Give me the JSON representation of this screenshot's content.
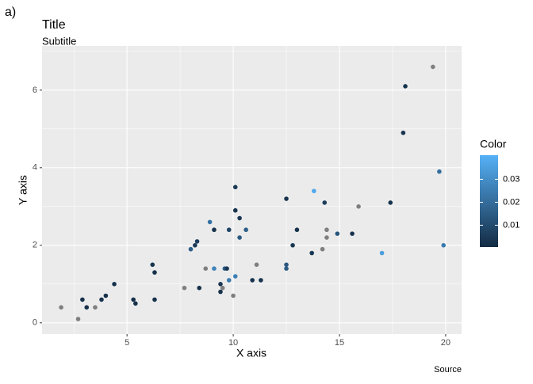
{
  "tag": "a)",
  "chart_data": {
    "type": "scatter",
    "title": "Title",
    "subtitle": "Subtitle",
    "caption": "Source",
    "x_label": "X axis",
    "y_label": "Y axis",
    "color_label": "Color",
    "x": [
      1.9,
      2.7,
      2.9,
      3.1,
      3.5,
      3.8,
      4.0,
      4.4,
      5.3,
      5.4,
      6.2,
      6.3,
      6.3,
      7.7,
      8.0,
      8.2,
      8.3,
      8.4,
      8.7,
      8.9,
      9.1,
      9.1,
      9.4,
      9.4,
      9.5,
      9.6,
      9.7,
      9.8,
      9.8,
      10.0,
      10.1,
      10.1,
      10.1,
      10.3,
      10.3,
      10.6,
      10.9,
      11.1,
      11.3,
      12.5,
      12.5,
      12.5,
      12.8,
      13.0,
      13.7,
      13.8,
      14.2,
      14.3,
      14.4,
      14.4,
      14.9,
      15.6,
      15.9,
      17.4,
      17.0,
      18.0,
      18.1,
      19.4,
      19.7,
      19.9
    ],
    "y": [
      0.4,
      0.1,
      0.6,
      0.4,
      0.4,
      0.6,
      0.7,
      1.0,
      0.6,
      0.5,
      1.5,
      1.3,
      0.6,
      0.9,
      1.9,
      2.0,
      2.1,
      0.9,
      1.4,
      2.6,
      2.4,
      1.4,
      1.0,
      0.8,
      0.9,
      1.4,
      1.4,
      2.4,
      1.1,
      0.7,
      3.5,
      2.9,
      1.2,
      2.7,
      2.2,
      2.4,
      1.1,
      1.5,
      1.1,
      3.2,
      1.5,
      1.4,
      2.0,
      2.4,
      1.8,
      3.4,
      1.9,
      3.1,
      2.4,
      2.2,
      2.3,
      2.3,
      3.0,
      3.1,
      1.8,
      4.9,
      6.1,
      6.6,
      3.9,
      2.0
    ],
    "color": [
      null,
      null,
      0.002,
      0.002,
      null,
      0.003,
      0.002,
      0.003,
      0.002,
      0.002,
      0.003,
      0.002,
      0.002,
      null,
      0.016,
      0.005,
      0.006,
      0.002,
      null,
      0.022,
      0.003,
      0.027,
      0.004,
      0.002,
      null,
      0.016,
      0.004,
      0.008,
      0.025,
      null,
      0.005,
      0.003,
      0.026,
      0.004,
      0.014,
      0.016,
      0.003,
      null,
      0.003,
      0.003,
      0.014,
      0.015,
      0.004,
      0.003,
      0.004,
      0.038,
      null,
      0.006,
      null,
      null,
      0.013,
      0.003,
      null,
      0.003,
      0.035,
      0.003,
      0.003,
      null,
      0.021,
      0.024
    ],
    "na_color": "#7f7f7f",
    "low_color": "#132b43",
    "high_color": "#56b1f7",
    "xlim": [
      1.0,
      20.75
    ],
    "ylim": [
      -0.29,
      7.14
    ],
    "clim": [
      0.0005,
      0.0405
    ],
    "xticks": [
      5,
      10,
      15,
      20
    ],
    "yticks": [
      0,
      2,
      4,
      6
    ],
    "cticks": [
      0.01,
      0.02,
      0.03
    ],
    "grid": true
  }
}
